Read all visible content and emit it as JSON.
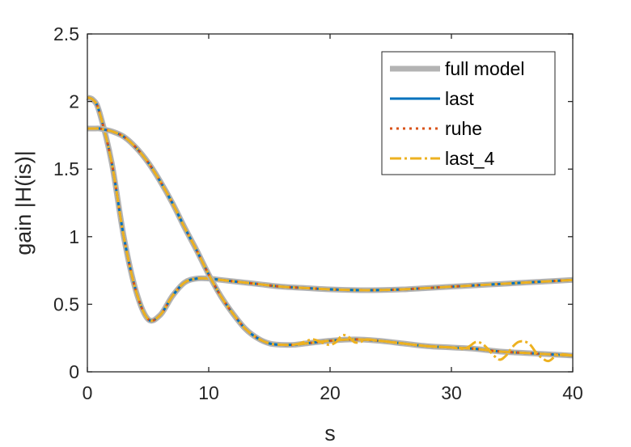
{
  "chart_data": {
    "type": "line",
    "xlabel": "s",
    "ylabel": "gain |H(is)|",
    "xlim": [
      0,
      40
    ],
    "ylim": [
      0,
      2.5
    ],
    "xticks": [
      0,
      10,
      20,
      30,
      40
    ],
    "yticks": [
      0,
      0.5,
      1,
      1.5,
      2,
      2.5
    ],
    "xtick_labels": [
      "0",
      "10",
      "20",
      "30",
      "40"
    ],
    "ytick_labels": [
      "0",
      "0.5",
      "1",
      "1.5",
      "2",
      "2.5"
    ],
    "grid": false,
    "legend_position": "top-right",
    "legend": [
      {
        "label": "full model",
        "color": "#b3b3b3",
        "style": "solid-thick"
      },
      {
        "label": "last",
        "color": "#0072bd",
        "style": "solid"
      },
      {
        "label": "ruhe",
        "color": "#d95319",
        "style": "dotted"
      },
      {
        "label": "last_4",
        "color": "#edb120",
        "style": "dashdot"
      }
    ],
    "curves": [
      {
        "id": "curve-a",
        "x": [
          0,
          0.5,
          1,
          2,
          3,
          4,
          5,
          6,
          7,
          8,
          9,
          10,
          11,
          12,
          14,
          16,
          18,
          20,
          22,
          24,
          26,
          28,
          30,
          32,
          34,
          36,
          38,
          40
        ],
        "y": [
          2.03,
          2.01,
          1.92,
          1.55,
          1.0,
          0.6,
          0.39,
          0.42,
          0.56,
          0.66,
          0.69,
          0.69,
          0.68,
          0.67,
          0.65,
          0.63,
          0.62,
          0.61,
          0.605,
          0.605,
          0.61,
          0.62,
          0.63,
          0.64,
          0.65,
          0.66,
          0.67,
          0.68
        ]
      },
      {
        "id": "curve-b",
        "x": [
          0,
          0.5,
          1,
          1.5,
          2,
          3,
          4,
          5,
          6,
          7,
          8,
          9,
          10,
          11,
          12,
          13,
          14,
          15,
          16,
          17,
          18,
          20,
          22,
          24,
          26,
          28,
          30,
          32,
          34,
          36,
          38,
          40
        ],
        "y": [
          1.8,
          1.8,
          1.8,
          1.79,
          1.78,
          1.74,
          1.66,
          1.55,
          1.41,
          1.25,
          1.07,
          0.9,
          0.72,
          0.56,
          0.43,
          0.32,
          0.25,
          0.21,
          0.2,
          0.2,
          0.21,
          0.23,
          0.24,
          0.23,
          0.21,
          0.19,
          0.18,
          0.17,
          0.15,
          0.14,
          0.13,
          0.12
        ]
      },
      {
        "id": "last4-wiggles",
        "x": [
          17,
          17.5,
          18,
          18.5,
          19,
          19.5,
          20,
          20.5,
          21,
          21.5,
          22,
          22.5,
          23,
          24,
          26,
          28,
          30,
          31,
          31.5,
          32,
          32.5,
          33,
          33.5,
          34,
          34.5,
          35,
          35.5,
          36,
          36.5,
          37,
          37.5,
          38,
          38.5,
          39,
          40
        ],
        "y": [
          0.2,
          0.21,
          0.225,
          0.24,
          0.23,
          0.21,
          0.2,
          0.22,
          0.27,
          0.26,
          0.22,
          0.22,
          0.24,
          0.23,
          0.21,
          0.19,
          0.18,
          0.17,
          0.19,
          0.22,
          0.21,
          0.17,
          0.12,
          0.09,
          0.12,
          0.18,
          0.22,
          0.225,
          0.2,
          0.14,
          0.1,
          0.08,
          0.11,
          0.13,
          0.12
        ]
      }
    ]
  }
}
